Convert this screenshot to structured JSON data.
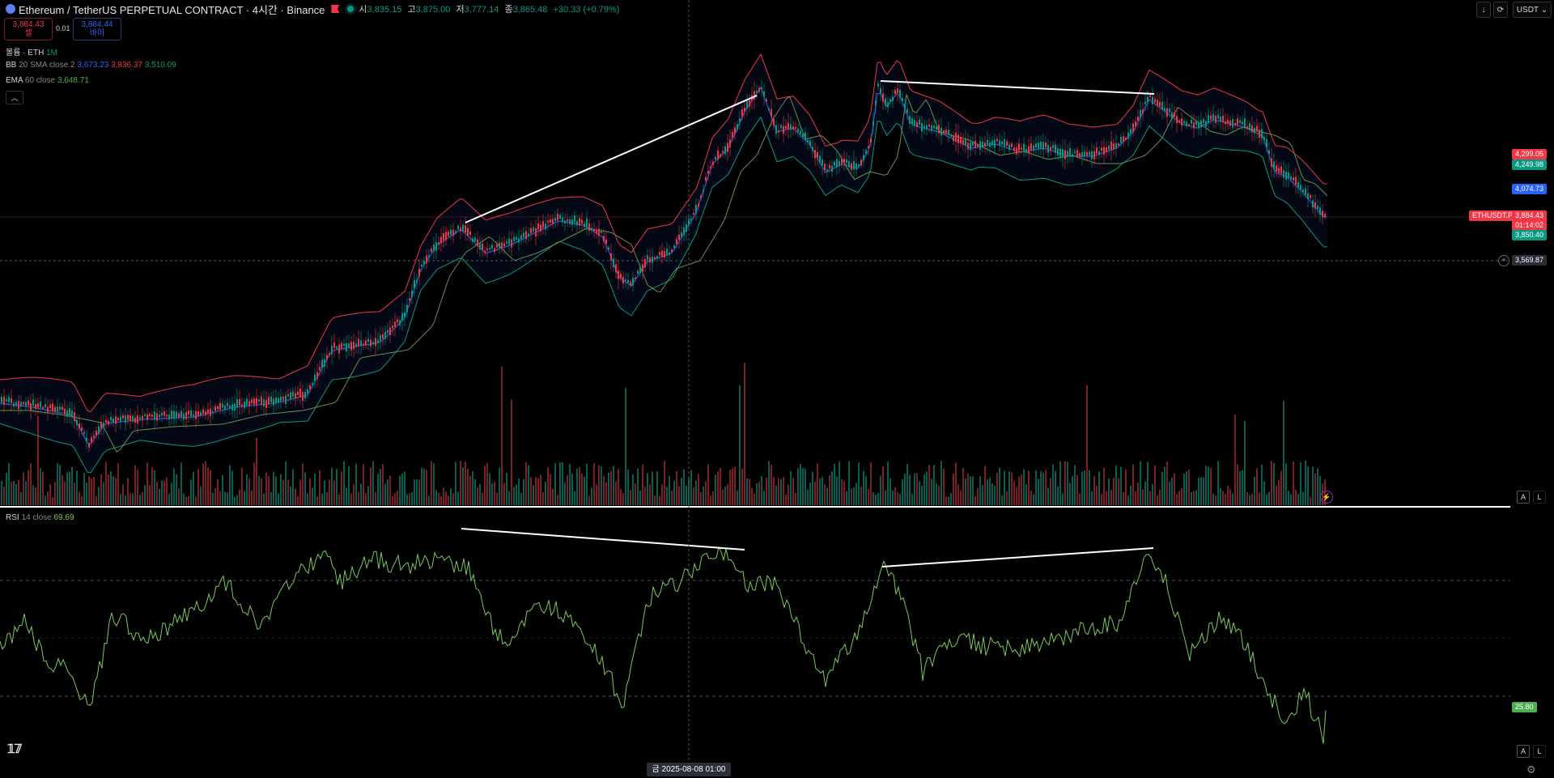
{
  "header": {
    "title": "Ethereum / TetherUS PERPETUAL CONTRACT · 4시간 · Binance",
    "ohlc": [
      {
        "k": "시",
        "v": "3,835.15"
      },
      {
        "k": "고",
        "v": "3,875.00"
      },
      {
        "k": "저",
        "v": "3,777.14"
      },
      {
        "k": "종",
        "v": "3,865.48"
      }
    ],
    "change": "+30.33 (+0.79%)"
  },
  "trade": {
    "sell_price": "3,884.43",
    "sell_label": "셀",
    "spread": "0.01",
    "buy_price": "3,884.44",
    "buy_label": "바이"
  },
  "legend": {
    "volume": {
      "name": "볼륨 · ETH",
      "param": "1M"
    },
    "bb": {
      "name": "BB",
      "params": "20 SMA close 2",
      "v1": "3,673.23",
      "v2": "3,836.37",
      "v3": "3,510.09"
    },
    "ema": {
      "name": "EMA",
      "params": "60 close",
      "v1": "3,648.71"
    },
    "rsi": {
      "name": "RSI",
      "params": "14 close",
      "v1": "69.69"
    }
  },
  "toolbar": {
    "download_icon": "↓",
    "sync_icon": "⟳",
    "currency": "USDT"
  },
  "price_labels": {
    "bb_upper": "4,299.05",
    "ema": "4,249.98",
    "bb_basis": "4,074.73",
    "symbol": "ETHUSDT.P",
    "last": "3,884.43",
    "countdown": "01:14:02",
    "bb_lower": "3,850.40",
    "crosshair": "3,569.87",
    "rsi_value": "25.80"
  },
  "crosshair_date": "금 2025-08-08   01:00",
  "scale_buttons": {
    "auto": "A",
    "log": "L"
  },
  "colors": {
    "up": "#089981",
    "down": "#f23645",
    "bb_upper": "#f23645",
    "bb_lower": "#089981",
    "bb_basis": "#2962ff",
    "ema": "#4caf50",
    "rsi": "#7bc95b"
  }
}
